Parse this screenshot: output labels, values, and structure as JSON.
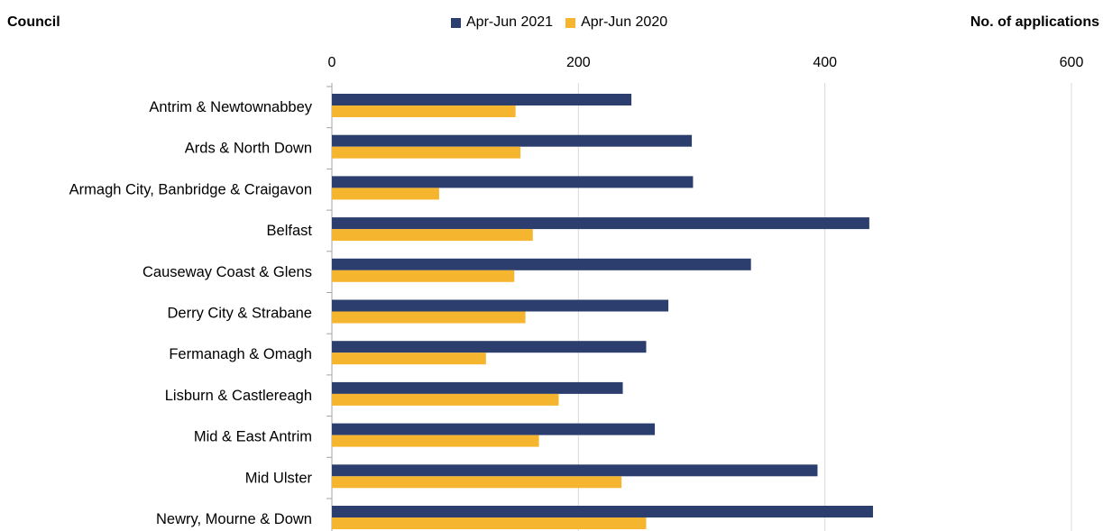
{
  "chart_data": {
    "type": "bar",
    "orientation": "horizontal",
    "ylabel": "Council",
    "xlabel": "No. of applications",
    "xlim": [
      0,
      600
    ],
    "xticks": [
      0,
      200,
      400,
      600
    ],
    "x_axis_position": "top",
    "grid": true,
    "legend_position": "top",
    "categories": [
      "Antrim & Newtownabbey",
      "Ards & North Down",
      "Armagh City, Banbridge & Craigavon",
      "Belfast",
      "Causeway Coast & Glens",
      "Derry City & Strabane",
      "Fermanagh & Omagh",
      "Lisburn & Castlereagh",
      "Mid & East Antrim",
      "Mid Ulster",
      "Newry, Mourne & Down"
    ],
    "series": [
      {
        "name": "Apr-Jun 2021",
        "color": "#2c3e6e",
        "values": [
          243,
          292,
          293,
          436,
          340,
          273,
          255,
          236,
          262,
          394,
          439
        ]
      },
      {
        "name": "Apr-Jun 2020",
        "color": "#f6b52e",
        "values": [
          149,
          153,
          87,
          163,
          148,
          157,
          125,
          184,
          168,
          235,
          255
        ]
      }
    ]
  }
}
